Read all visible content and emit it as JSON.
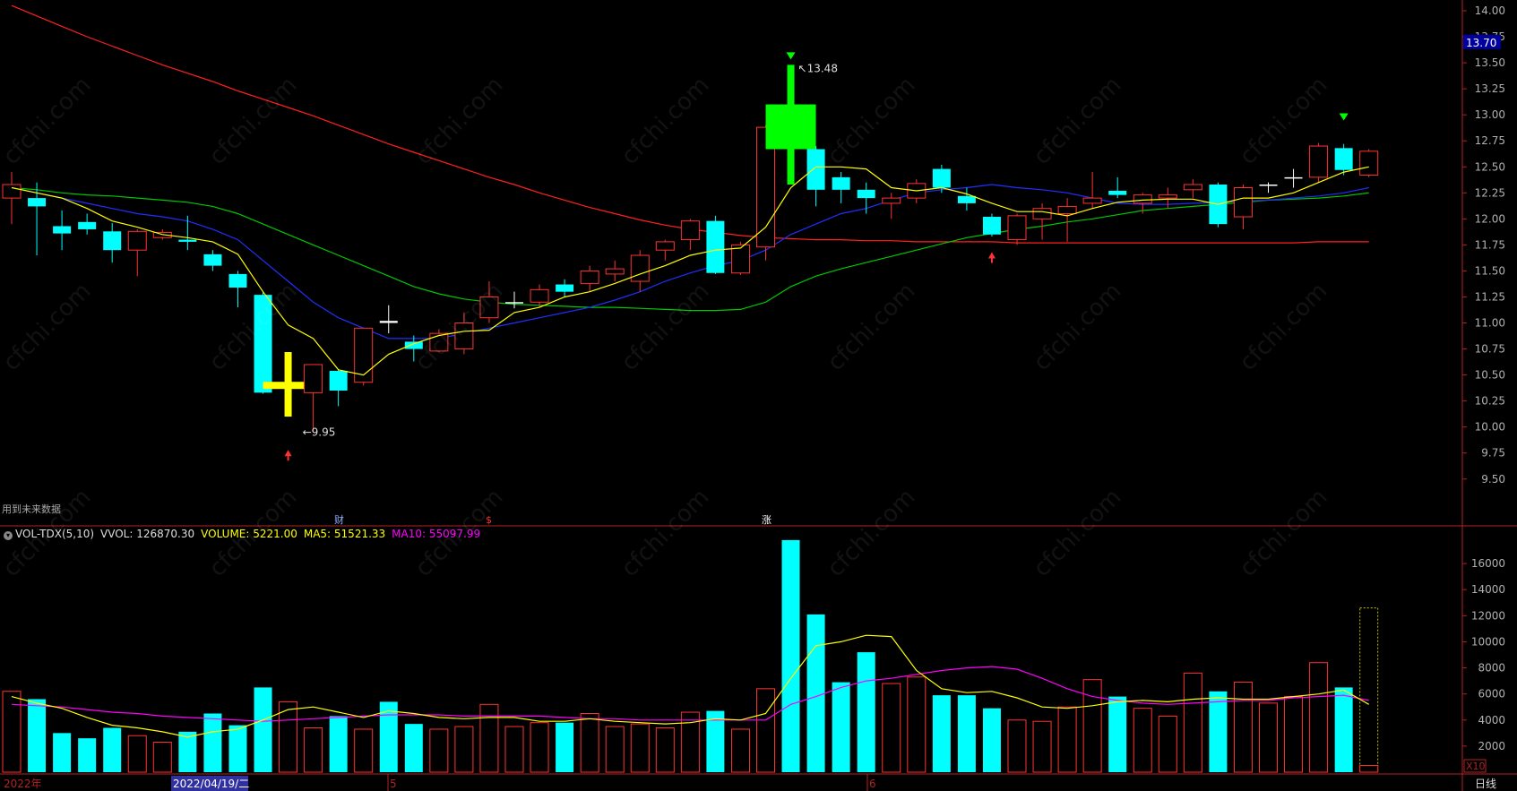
{
  "colors": {
    "bg": "#000000",
    "axis": "#b22222",
    "up": "#ff3232",
    "down": "#00ffff",
    "ma5": "#ffff00",
    "ma10": "#2030ff",
    "ma20": "#00c800",
    "ma60": "#ff2020",
    "vol_ma5": "#ffff00",
    "vol_ma10": "#ff00ff",
    "special_up": "#00ff00",
    "special_cross": "#ffff00",
    "price_tag_bg": "#0000a0"
  },
  "watermark": "cfchi.com",
  "price_panel": {
    "y_ticks": [
      "9.50",
      "9.75",
      "10.00",
      "10.25",
      "10.50",
      "10.75",
      "11.00",
      "11.25",
      "11.50",
      "11.75",
      "12.00",
      "12.25",
      "12.50",
      "12.75",
      "13.00",
      "13.25",
      "13.50",
      "13.75",
      "14.00"
    ],
    "current_price_tag": "13.70",
    "max_label": "13.48",
    "min_label": "9.95",
    "future_data_note": "用到未来数据",
    "event_marks": [
      "财",
      "$",
      "涨"
    ]
  },
  "volume_panel": {
    "header": {
      "indicator": "VOL-TDX(5,10)",
      "vvol": "VVOL: 126870.30",
      "volume": "VOLUME: 5221.00",
      "ma5": "MA5: 51521.33",
      "ma10": "MA10: 55097.99"
    },
    "y_ticks": [
      "2000",
      "4000",
      "6000",
      "8000",
      "10000",
      "12000",
      "14000",
      "16000"
    ],
    "unit": "X10"
  },
  "x_axis": {
    "labels": [
      "2022年",
      "2022/04/19/二",
      "5",
      "6"
    ],
    "period": "日线"
  },
  "chart_data": {
    "type": "candlestick",
    "price_ylim": [
      9.3,
      14.0
    ],
    "volume_ylim": [
      0,
      18000
    ],
    "candles": [
      {
        "o": 12.2,
        "h": 12.45,
        "l": 11.95,
        "c": 12.33,
        "v": 6200
      },
      {
        "o": 12.2,
        "h": 12.35,
        "l": 11.65,
        "c": 12.12,
        "v": 5600
      },
      {
        "o": 11.93,
        "h": 12.08,
        "l": 11.7,
        "c": 11.86,
        "v": 3000
      },
      {
        "o": 11.97,
        "h": 12.05,
        "l": 11.85,
        "c": 11.9,
        "v": 2600
      },
      {
        "o": 11.88,
        "h": 11.96,
        "l": 11.58,
        "c": 11.7,
        "v": 3400
      },
      {
        "o": 11.7,
        "h": 11.9,
        "l": 11.45,
        "c": 11.88,
        "v": 2800
      },
      {
        "o": 11.82,
        "h": 11.9,
        "l": 11.8,
        "c": 11.87,
        "v": 2300
      },
      {
        "o": 11.8,
        "h": 12.03,
        "l": 11.7,
        "c": 11.78,
        "v": 3100
      },
      {
        "o": 11.66,
        "h": 11.7,
        "l": 11.5,
        "c": 11.55,
        "v": 4500
      },
      {
        "o": 11.47,
        "h": 11.5,
        "l": 11.15,
        "c": 11.34,
        "v": 3600
      },
      {
        "o": 11.27,
        "h": 11.3,
        "l": 10.32,
        "c": 10.33,
        "v": 6500
      },
      {
        "o": 10.33,
        "h": 10.72,
        "l": 10.1,
        "c": 10.33,
        "v": 5400
      },
      {
        "o": 10.33,
        "h": 10.6,
        "l": 9.95,
        "c": 10.6,
        "v": 3400
      },
      {
        "o": 10.54,
        "h": 10.55,
        "l": 10.2,
        "c": 10.35,
        "v": 4300
      },
      {
        "o": 10.43,
        "h": 10.95,
        "l": 10.4,
        "c": 10.95,
        "v": 3300
      },
      {
        "o": 11.02,
        "h": 11.17,
        "l": 10.9,
        "c": 11.0,
        "v": 5400
      },
      {
        "o": 10.82,
        "h": 10.88,
        "l": 10.63,
        "c": 10.75,
        "v": 3700
      },
      {
        "o": 10.73,
        "h": 10.94,
        "l": 10.72,
        "c": 10.9,
        "v": 3300
      },
      {
        "o": 10.75,
        "h": 11.1,
        "l": 10.7,
        "c": 11.0,
        "v": 3500
      },
      {
        "o": 11.05,
        "h": 11.4,
        "l": 11.0,
        "c": 11.25,
        "v": 5200
      },
      {
        "o": 11.2,
        "h": 11.3,
        "l": 11.14,
        "c": 11.2,
        "v": 3500
      },
      {
        "o": 11.2,
        "h": 11.37,
        "l": 11.15,
        "c": 11.32,
        "v": 3800
      },
      {
        "o": 11.37,
        "h": 11.42,
        "l": 11.25,
        "c": 11.3,
        "v": 3800
      },
      {
        "o": 11.38,
        "h": 11.55,
        "l": 11.3,
        "c": 11.5,
        "v": 4500
      },
      {
        "o": 11.47,
        "h": 11.6,
        "l": 11.4,
        "c": 11.52,
        "v": 3500
      },
      {
        "o": 11.4,
        "h": 11.7,
        "l": 11.3,
        "c": 11.65,
        "v": 3700
      },
      {
        "o": 11.7,
        "h": 11.8,
        "l": 11.6,
        "c": 11.78,
        "v": 3400
      },
      {
        "o": 11.8,
        "h": 12.0,
        "l": 11.7,
        "c": 11.98,
        "v": 4600
      },
      {
        "o": 11.98,
        "h": 12.03,
        "l": 11.47,
        "c": 11.48,
        "v": 4700
      },
      {
        "o": 11.48,
        "h": 11.78,
        "l": 11.46,
        "c": 11.75,
        "v": 3300
      },
      {
        "o": 11.73,
        "h": 12.9,
        "l": 11.6,
        "c": 12.88,
        "v": 6400
      },
      {
        "o": 13.1,
        "h": 13.48,
        "l": 12.33,
        "c": 12.67,
        "v": 17800
      },
      {
        "o": 12.67,
        "h": 12.7,
        "l": 12.12,
        "c": 12.28,
        "v": 12100
      },
      {
        "o": 12.4,
        "h": 12.45,
        "l": 12.15,
        "c": 12.28,
        "v": 6900
      },
      {
        "o": 12.28,
        "h": 12.35,
        "l": 12.05,
        "c": 12.2,
        "v": 9200
      },
      {
        "o": 12.15,
        "h": 12.25,
        "l": 12.0,
        "c": 12.2,
        "v": 6800
      },
      {
        "o": 12.2,
        "h": 12.38,
        "l": 12.15,
        "c": 12.34,
        "v": 7300
      },
      {
        "o": 12.48,
        "h": 12.52,
        "l": 12.25,
        "c": 12.3,
        "v": 5900
      },
      {
        "o": 12.22,
        "h": 12.3,
        "l": 12.08,
        "c": 12.15,
        "v": 5900
      },
      {
        "o": 12.02,
        "h": 12.05,
        "l": 11.83,
        "c": 11.85,
        "v": 4900
      },
      {
        "o": 11.8,
        "h": 12.05,
        "l": 11.75,
        "c": 12.03,
        "v": 4000
      },
      {
        "o": 12.0,
        "h": 12.15,
        "l": 11.8,
        "c": 12.1,
        "v": 3900
      },
      {
        "o": 12.05,
        "h": 12.2,
        "l": 11.78,
        "c": 12.12,
        "v": 5000
      },
      {
        "o": 12.15,
        "h": 12.45,
        "l": 12.1,
        "c": 12.2,
        "v": 7100
      },
      {
        "o": 12.27,
        "h": 12.4,
        "l": 12.2,
        "c": 12.23,
        "v": 5800
      },
      {
        "o": 12.15,
        "h": 12.25,
        "l": 12.05,
        "c": 12.23,
        "v": 4900
      },
      {
        "o": 12.2,
        "h": 12.3,
        "l": 12.1,
        "c": 12.23,
        "v": 4300
      },
      {
        "o": 12.28,
        "h": 12.38,
        "l": 12.2,
        "c": 12.33,
        "v": 7600
      },
      {
        "o": 12.33,
        "h": 12.35,
        "l": 11.92,
        "c": 11.95,
        "v": 6200
      },
      {
        "o": 12.02,
        "h": 12.33,
        "l": 11.9,
        "c": 12.3,
        "v": 6900
      },
      {
        "o": 12.33,
        "h": 12.35,
        "l": 12.25,
        "c": 12.33,
        "v": 5300
      },
      {
        "o": 12.4,
        "h": 12.48,
        "l": 12.3,
        "c": 12.4,
        "v": 5800
      },
      {
        "o": 12.4,
        "h": 12.73,
        "l": 12.35,
        "c": 12.7,
        "v": 8400
      },
      {
        "o": 12.68,
        "h": 12.72,
        "l": 12.42,
        "c": 12.47,
        "v": 6500
      },
      {
        "o": 12.42,
        "h": 12.67,
        "l": 12.4,
        "c": 12.65,
        "v": 520
      }
    ],
    "ma5": [
      12.3,
      12.25,
      12.2,
      12.1,
      11.98,
      11.92,
      11.85,
      11.82,
      11.78,
      11.66,
      11.3,
      10.98,
      10.85,
      10.55,
      10.5,
      10.7,
      10.8,
      10.88,
      10.92,
      10.93,
      11.1,
      11.15,
      11.25,
      11.3,
      11.38,
      11.47,
      11.55,
      11.65,
      11.7,
      11.72,
      11.92,
      12.3,
      12.5,
      12.5,
      12.48,
      12.3,
      12.27,
      12.3,
      12.24,
      12.15,
      12.07,
      12.07,
      12.03,
      12.1,
      12.16,
      12.18,
      12.19,
      12.19,
      12.14,
      12.2,
      12.2,
      12.25,
      12.35,
      12.45,
      12.5
    ],
    "ma10": [
      12.3,
      12.25,
      12.2,
      12.15,
      12.1,
      12.05,
      12.02,
      11.98,
      11.9,
      11.8,
      11.6,
      11.4,
      11.2,
      11.05,
      10.95,
      10.85,
      10.85,
      10.85,
      10.9,
      10.95,
      11.0,
      11.05,
      11.1,
      11.15,
      11.22,
      11.3,
      11.4,
      11.48,
      11.55,
      11.6,
      11.7,
      11.85,
      11.95,
      12.05,
      12.1,
      12.18,
      12.25,
      12.28,
      12.3,
      12.33,
      12.3,
      12.28,
      12.25,
      12.2,
      12.15,
      12.14,
      12.14,
      12.15,
      12.16,
      12.17,
      12.18,
      12.2,
      12.22,
      12.25,
      12.3
    ],
    "ma20": [
      12.3,
      12.28,
      12.25,
      12.23,
      12.22,
      12.2,
      12.18,
      12.16,
      12.12,
      12.05,
      11.95,
      11.85,
      11.75,
      11.65,
      11.55,
      11.45,
      11.35,
      11.28,
      11.23,
      11.2,
      11.18,
      11.17,
      11.16,
      11.15,
      11.15,
      11.14,
      11.13,
      11.12,
      11.12,
      11.13,
      11.2,
      11.35,
      11.45,
      11.52,
      11.58,
      11.64,
      11.7,
      11.76,
      11.82,
      11.86,
      11.9,
      11.93,
      11.97,
      12.0,
      12.04,
      12.08,
      12.1,
      12.12,
      12.14,
      12.16,
      12.18,
      12.19,
      12.2,
      12.22,
      12.25
    ],
    "ma60": [
      14.05,
      13.95,
      13.85,
      13.75,
      13.66,
      13.57,
      13.48,
      13.4,
      13.32,
      13.23,
      13.15,
      13.07,
      12.99,
      12.9,
      12.81,
      12.72,
      12.64,
      12.56,
      12.48,
      12.4,
      12.33,
      12.25,
      12.18,
      12.11,
      12.05,
      11.99,
      11.94,
      11.9,
      11.87,
      11.84,
      11.82,
      11.81,
      11.8,
      11.8,
      11.79,
      11.79,
      11.78,
      11.78,
      11.78,
      11.78,
      11.77,
      11.77,
      11.77,
      11.77,
      11.77,
      11.77,
      11.77,
      11.77,
      11.77,
      11.77,
      11.77,
      11.77,
      11.78,
      11.78,
      11.78
    ],
    "vol_ma5": [
      5800,
      5300,
      4900,
      4200,
      3600,
      3400,
      3100,
      2700,
      3100,
      3300,
      4000,
      4800,
      5000,
      4600,
      4200,
      4700,
      4500,
      4200,
      4100,
      4200,
      4200,
      3900,
      3900,
      4100,
      3900,
      3800,
      3700,
      3800,
      4100,
      4000,
      4500,
      7200,
      9700,
      10000,
      10500,
      10400,
      7800,
      6400,
      6100,
      6200,
      5700,
      5000,
      4900,
      5100,
      5400,
      5500,
      5400,
      5600,
      5700,
      5600,
      5600,
      5800,
      6000,
      6300,
      5200
    ],
    "vol_ma10": [
      5200,
      5100,
      5000,
      4800,
      4600,
      4500,
      4300,
      4200,
      4100,
      4000,
      3900,
      4000,
      4100,
      4200,
      4300,
      4400,
      4400,
      4400,
      4300,
      4300,
      4300,
      4300,
      4200,
      4100,
      4100,
      4000,
      4000,
      4000,
      4000,
      4000,
      4000,
      5200,
      5800,
      6500,
      7000,
      7200,
      7500,
      7800,
      8000,
      8100,
      7900,
      7200,
      6400,
      5800,
      5500,
      5300,
      5200,
      5300,
      5400,
      5500,
      5500,
      5700,
      5800,
      5900,
      5500
    ]
  }
}
